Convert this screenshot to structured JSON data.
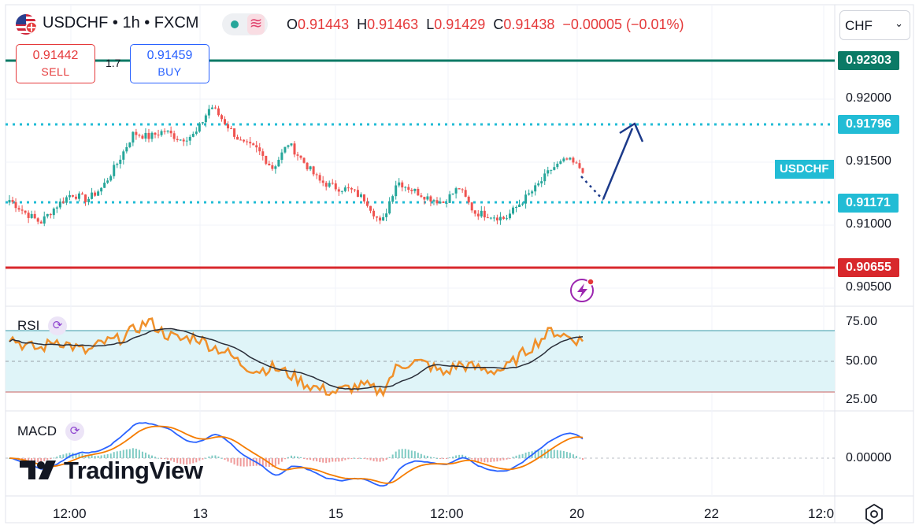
{
  "header": {
    "symbol": "USDCHF",
    "separator": "•",
    "interval": "1h",
    "exchange": "FXCM",
    "title": "USDCHF • 1h • FXCM",
    "ohlc": {
      "o_label": "O",
      "o": "0.91443",
      "h_label": "H",
      "h": "0.91463",
      "l_label": "L",
      "l": "0.91429",
      "c_label": "C",
      "c": "0.91438",
      "change": "−0.00005 (−0.01%)"
    },
    "market_status_icon": "green-dot-icon",
    "indicator_icon": "wave-icon"
  },
  "trade": {
    "sell_price": "0.91442",
    "sell_label": "SELL",
    "buy_price": "0.91459",
    "buy_label": "BUY",
    "spread": "1.7"
  },
  "currency_select": {
    "value": "CHF"
  },
  "price_axis": {
    "ticks": [
      "0.92000",
      "0.91500",
      "0.91000",
      "0.90500"
    ],
    "tags": {
      "resistance_top": "0.92303",
      "level_upper": "0.91796",
      "level_lower": "0.91171",
      "support_bottom": "0.90655"
    },
    "symbol_tag": "USDCHF"
  },
  "rsi": {
    "label": "RSI",
    "ticks": [
      "75.00",
      "50.00",
      "25.00"
    ]
  },
  "macd": {
    "label": "MACD",
    "ticks": [
      "0.00000"
    ]
  },
  "time_axis": {
    "labels": [
      "12:00",
      "13",
      "15",
      "12:00",
      "20",
      "22",
      "12:0"
    ]
  },
  "logo": {
    "text": "TradingView"
  },
  "colors": {
    "up": "#26a69a",
    "down": "#ef5350",
    "resistance": "#0b7a66",
    "level": "#22bcd5",
    "support": "#d8282c",
    "arrow": "#1c3a8a",
    "rsi_line": "#f0902a",
    "rsi_ma": "#2a2e39",
    "rsi_band": "#dff4f8",
    "macd_line": "#2962ff",
    "signal_line": "#f57c00"
  },
  "chart_data": {
    "type": "candlestick",
    "x_labels": [
      "12:00",
      "13",
      "15",
      "12:00",
      "20",
      "22",
      "12:0"
    ],
    "y_ticks": [
      0.92,
      0.915,
      0.91,
      0.905
    ],
    "horizontal_levels": [
      0.92303,
      0.91796,
      0.91171,
      0.90655
    ],
    "close_path_approx": [
      0.912,
      0.911,
      0.9102,
      0.9115,
      0.9125,
      0.912,
      0.913,
      0.915,
      0.9173,
      0.917,
      0.9175,
      0.9168,
      0.9172,
      0.9195,
      0.918,
      0.9165,
      0.916,
      0.9145,
      0.9165,
      0.915,
      0.9135,
      0.913,
      0.9128,
      0.912,
      0.91,
      0.9135,
      0.9128,
      0.9122,
      0.9118,
      0.913,
      0.911,
      0.9108,
      0.9105,
      0.9118,
      0.913,
      0.9145,
      0.9152,
      0.9144
    ],
    "rsi_path_approx": [
      66,
      60,
      58,
      64,
      60,
      56,
      62,
      64,
      70,
      76,
      68,
      64,
      66,
      60,
      56,
      48,
      44,
      46,
      42,
      36,
      32,
      30,
      33,
      34,
      30,
      46,
      50,
      48,
      42,
      48,
      46,
      44,
      45,
      54,
      62,
      70,
      66,
      63
    ],
    "projection": "upward arrow from ~0.9117 to ~0.9180"
  }
}
